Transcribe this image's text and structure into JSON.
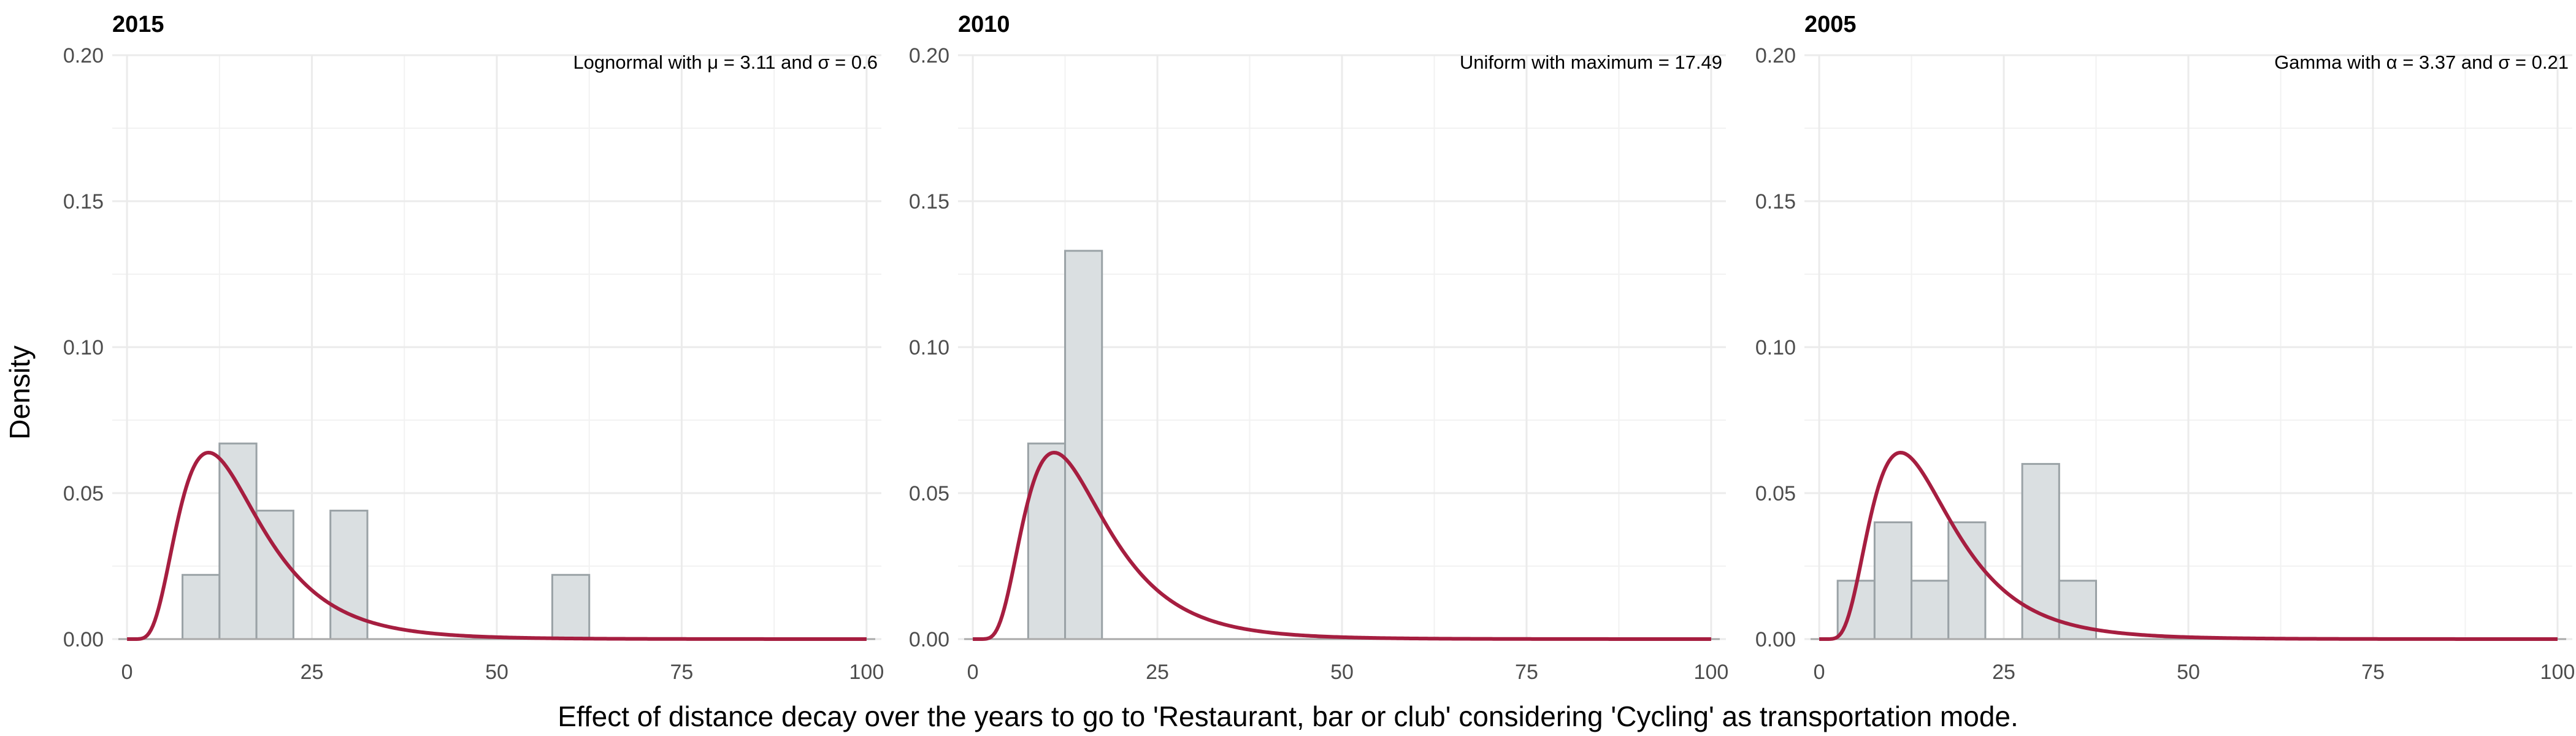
{
  "chart_data": [
    {
      "type": "bar",
      "title": "2015",
      "annotation": "Lognormal with μ = 3.11 and σ = 0.6",
      "ylim": [
        0,
        0.2
      ],
      "xlim": [
        -2,
        102
      ],
      "x_ticks": [
        "0",
        "25",
        "50",
        "75",
        "100"
      ],
      "y_ticks": [
        "0.00",
        "0.05",
        "0.10",
        "0.15",
        "0.20"
      ],
      "bins": [
        {
          "x0": 7.5,
          "x1": 12.5,
          "density": 0.022
        },
        {
          "x0": 12.5,
          "x1": 17.5,
          "density": 0.067
        },
        {
          "x0": 17.5,
          "x1": 22.5,
          "density": 0.044
        },
        {
          "x0": 27.5,
          "x1": 32.5,
          "density": 0.044
        },
        {
          "x0": 57.5,
          "x1": 62.5,
          "density": 0.022
        }
      ],
      "curve": {
        "distribution": "lognormal",
        "meanlog": 2.65,
        "sdlog": 0.5
      }
    },
    {
      "type": "bar",
      "title": "2010",
      "annotation": "Uniform with maximum = 17.49",
      "ylim": [
        0,
        0.2
      ],
      "xlim": [
        -2,
        102
      ],
      "x_ticks": [
        "0",
        "25",
        "50",
        "75",
        "100"
      ],
      "y_ticks": [
        "0.00",
        "0.05",
        "0.10",
        "0.15",
        "0.20"
      ],
      "bins": [
        {
          "x0": 7.5,
          "x1": 12.5,
          "density": 0.067
        },
        {
          "x0": 12.5,
          "x1": 17.5,
          "density": 0.133
        }
      ],
      "curve": {
        "distribution": "lognormal",
        "meanlog": 2.65,
        "sdlog": 0.5
      }
    },
    {
      "type": "bar",
      "title": "2005",
      "annotation": "Gamma with α = 3.37 and σ = 0.21",
      "ylim": [
        0,
        0.2
      ],
      "xlim": [
        -2,
        102
      ],
      "x_ticks": [
        "0",
        "25",
        "50",
        "75",
        "100"
      ],
      "y_ticks": [
        "0.00",
        "0.05",
        "0.10",
        "0.15",
        "0.20"
      ],
      "bins": [
        {
          "x0": 2.5,
          "x1": 7.5,
          "density": 0.02
        },
        {
          "x0": 7.5,
          "x1": 12.5,
          "density": 0.04
        },
        {
          "x0": 12.5,
          "x1": 17.5,
          "density": 0.02
        },
        {
          "x0": 17.5,
          "x1": 22.5,
          "density": 0.04
        },
        {
          "x0": 27.5,
          "x1": 32.5,
          "density": 0.06
        },
        {
          "x0": 32.5,
          "x1": 37.5,
          "density": 0.02
        }
      ],
      "curve": {
        "distribution": "lognormal",
        "meanlog": 2.65,
        "sdlog": 0.5
      }
    }
  ],
  "ylabel": "Density",
  "xlabel": "Effect of distance decay over the years to go to 'Restaurant, bar or club' considering 'Cycling' as transportation mode.",
  "colors": {
    "bar_fill": "#dadfe1",
    "bar_border": "#9aa2a6",
    "curve": "#a61e40",
    "grid": "#ebebeb"
  }
}
